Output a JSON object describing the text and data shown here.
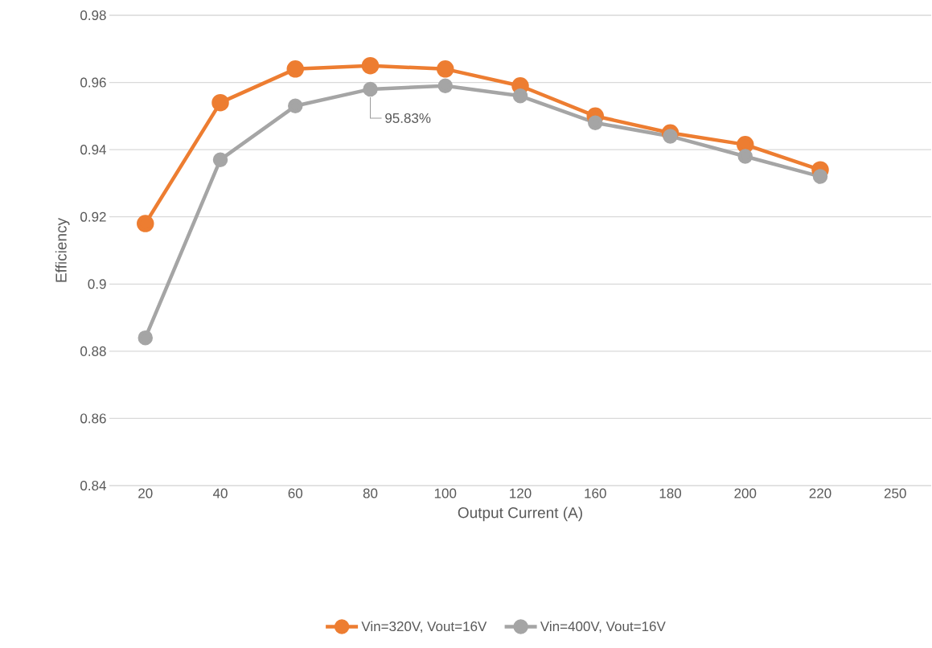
{
  "chart_data": {
    "type": "line",
    "xlabel": "Output Current (A)",
    "ylabel": "Efficiency",
    "categories": [
      "20",
      "40",
      "60",
      "80",
      "100",
      "120",
      "160",
      "180",
      "200",
      "220",
      "250"
    ],
    "series": [
      {
        "name": "Vin=320V, Vout=16V",
        "color": "#ed7d31",
        "values": [
          0.918,
          0.954,
          0.964,
          0.965,
          0.964,
          0.959,
          0.95,
          0.945,
          0.9415,
          0.934,
          null
        ]
      },
      {
        "name": "Vin=400V, Vout=16V",
        "color": "#a5a5a5",
        "values": [
          0.884,
          0.937,
          0.953,
          0.958,
          0.959,
          0.956,
          0.948,
          0.944,
          0.938,
          0.932,
          null
        ]
      }
    ],
    "ylim": [
      0.84,
      0.98
    ],
    "yticks": [
      0.84,
      0.86,
      0.88,
      0.9,
      0.92,
      0.94,
      0.96,
      0.98
    ],
    "annotations": [
      {
        "text": "95.83%",
        "x": "80",
        "y": 0.958
      }
    ],
    "grid": "y",
    "legend": "bottom",
    "marker": "circle",
    "line_style": "solid"
  }
}
